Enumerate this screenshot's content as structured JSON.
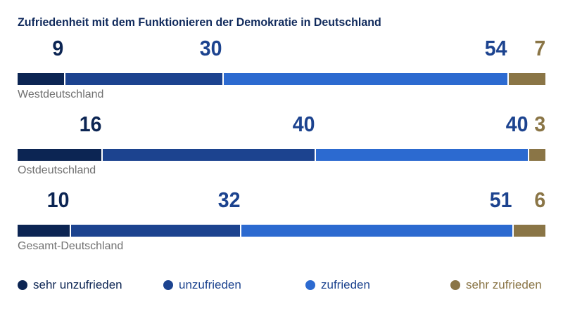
{
  "colors": {
    "sehr_unzufrieden": "#0c2553",
    "unzufrieden": "#1c438f",
    "zufrieden": "#2c6ad0",
    "sehr_zufrieden": "#8a7546",
    "title": "#102a5c",
    "label": "#707070"
  },
  "chart_data": {
    "type": "bar",
    "orientation": "horizontal",
    "stacked": true,
    "title": "Zufriedenheit mit dem Funktionieren der Demokratie in Deutschland",
    "categories": [
      "Westdeutschland",
      "Ostdeutschland",
      "Gesamt-Deutschland"
    ],
    "series": [
      {
        "name": "sehr unzufrieden",
        "values": [
          9,
          16,
          10
        ]
      },
      {
        "name": "unzufrieden",
        "values": [
          30,
          40,
          32
        ]
      },
      {
        "name": "zufrieden",
        "values": [
          54,
          40,
          51
        ]
      },
      {
        "name": "sehr zufrieden",
        "values": [
          7,
          3,
          6
        ]
      }
    ],
    "legend_position": "bottom",
    "grid": false
  }
}
